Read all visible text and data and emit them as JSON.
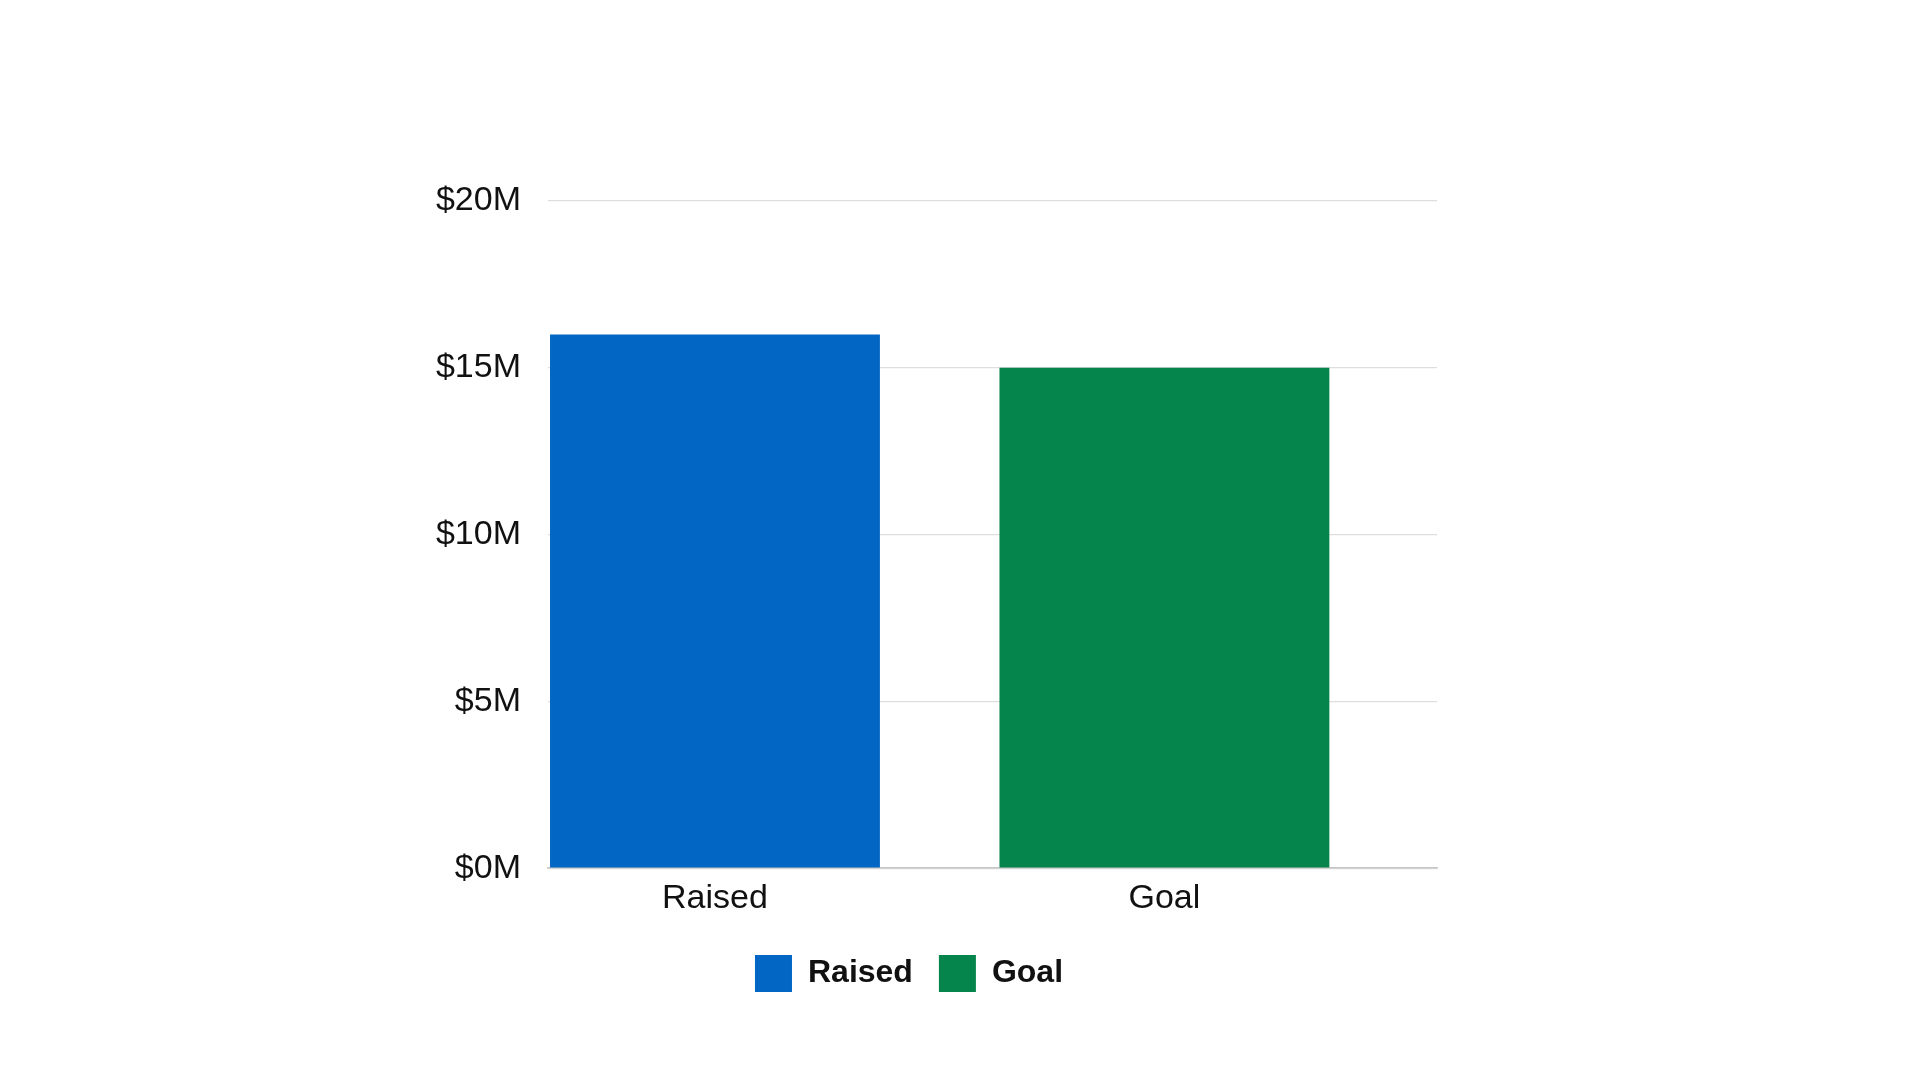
{
  "chart_data": {
    "type": "bar",
    "categories": [
      "Raised",
      "Goal"
    ],
    "series": [
      {
        "name": "Raised",
        "color": "#0266c4",
        "values": [
          16,
          null
        ]
      },
      {
        "name": "Goal",
        "color": "#05844b",
        "values": [
          null,
          15
        ]
      }
    ],
    "ylim": [
      0,
      20
    ],
    "yticks": [
      {
        "value": 0,
        "label": "$0M"
      },
      {
        "value": 5,
        "label": "$5M"
      },
      {
        "value": 10,
        "label": "$10M"
      },
      {
        "value": 15,
        "label": "$15M"
      },
      {
        "value": 20,
        "label": "$20M"
      }
    ],
    "grid": "y",
    "legend": "bottom"
  }
}
